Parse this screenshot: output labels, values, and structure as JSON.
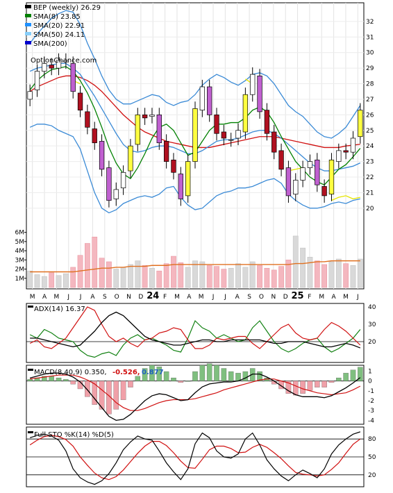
{
  "chart_data": {
    "type": "line",
    "source": "OptionChance.com",
    "months": [
      "M",
      "A",
      "M",
      "J",
      "J",
      "A",
      "S",
      "O",
      "N",
      "D",
      "24",
      "F",
      "M",
      "A",
      "M",
      "J",
      "J",
      "A",
      "S",
      "O",
      "N",
      "D",
      "25",
      "F",
      "M",
      "A",
      "M",
      "J"
    ],
    "price_panel": {
      "legend": [
        {
          "label": "BEP (weekly) 26.29",
          "color": "#000000"
        },
        {
          "label": "SMA(8) 23.85",
          "color": "#008000"
        },
        {
          "label": "SMA(20) 22.91",
          "color": "#1e90ff"
        },
        {
          "label": "SMA(50) 24.11",
          "color": "#87cefa"
        },
        {
          "label": "SMA(200)",
          "color": "#0000cd"
        }
      ],
      "yticks": [
        20,
        21,
        22,
        23,
        24,
        25,
        26,
        27,
        28,
        29,
        30,
        31,
        32
      ],
      "ylim": [
        19.1,
        33.2
      ],
      "volume_ticks": [
        "1M",
        "2M",
        "3M",
        "4M",
        "5M",
        "6M"
      ],
      "close": [
        27.5,
        28.8,
        29.3,
        29.0,
        29.5,
        29.5,
        27.5,
        26.3,
        25.2,
        24.2,
        22.5,
        20.5,
        21.2,
        22.3,
        24.0,
        26.0,
        25.8,
        26.0,
        24.2,
        23.0,
        22.3,
        20.6,
        23.0,
        26.4,
        27.8,
        26.0,
        24.8,
        24.5,
        24.4,
        25.0,
        27.3,
        28.6,
        26.2,
        24.8,
        23.6,
        22.5,
        20.8,
        21.8,
        22.6,
        23.0,
        21.5,
        20.8,
        23.1,
        23.7,
        23.6,
        24.5,
        26.3
      ],
      "open": [
        27.0,
        27.6,
        28.8,
        29.2,
        29.0,
        29.4,
        29.3,
        27.4,
        26.2,
        25.1,
        24.3,
        22.6,
        20.6,
        21.3,
        22.4,
        24.1,
        26.0,
        25.9,
        26.0,
        24.3,
        23.1,
        22.2,
        20.8,
        23.0,
        26.3,
        27.8,
        26.0,
        24.9,
        24.4,
        24.5,
        24.9,
        27.3,
        28.5,
        26.3,
        24.9,
        23.7,
        22.6,
        20.9,
        21.8,
        22.6,
        23.1,
        21.4,
        20.9,
        23.0,
        23.7,
        23.6,
        24.6
      ],
      "volume": [
        1.8,
        1.4,
        1.2,
        1.6,
        1.3,
        1.5,
        2.2,
        3.5,
        4.8,
        5.5,
        3.2,
        2.8,
        2.0,
        2.2,
        2.5,
        2.9,
        2.4,
        2.1,
        1.8,
        2.6,
        3.4,
        2.7,
        2.2,
        2.9,
        2.8,
        2.4,
        2.3,
        2.0,
        2.1,
        2.6,
        2.2,
        2.8,
        2.4,
        2.1,
        1.9,
        2.3,
        3.0,
        5.6,
        4.3,
        3.3,
        2.9,
        2.5,
        2.8,
        3.1,
        2.6,
        2.4,
        3.1
      ],
      "sma8": [
        27.6,
        28.2,
        28.6,
        28.9,
        29.0,
        29.1,
        28.8,
        28.2,
        27.4,
        26.4,
        25.2,
        23.9,
        22.9,
        22.2,
        21.9,
        22.6,
        23.5,
        24.5,
        25.2,
        25.4,
        25.0,
        24.2,
        23.4,
        23.6,
        24.3,
        25.0,
        25.4,
        25.4,
        25.5,
        25.5,
        25.8,
        26.3,
        26.5,
        26.2,
        25.5,
        24.6,
        23.8,
        23.0,
        22.5,
        22.0,
        21.7,
        21.5,
        22.0,
        22.5,
        22.8,
        23.3,
        23.85
      ],
      "sma20": [
        28.8,
        29.0,
        29.1,
        29.2,
        29.3,
        29.3,
        29.0,
        28.6,
        27.9,
        27.2,
        26.4,
        25.6,
        24.8,
        24.1,
        23.7,
        23.6,
        23.7,
        23.9,
        24.0,
        24.0,
        23.9,
        23.7,
        23.5,
        23.5,
        23.7,
        24.0,
        24.3,
        24.4,
        24.4,
        24.5,
        24.7,
        24.9,
        25.0,
        25.0,
        24.8,
        24.5,
        24.1,
        23.7,
        23.3,
        22.9,
        22.6,
        22.4,
        22.4,
        22.5,
        22.6,
        22.7,
        22.91
      ],
      "sma50": [
        27.5,
        27.8,
        28.0,
        28.2,
        28.4,
        28.5,
        28.5,
        28.4,
        28.2,
        27.9,
        27.5,
        27.0,
        26.5,
        26.0,
        25.6,
        25.2,
        24.9,
        24.7,
        24.5,
        24.3,
        24.2,
        24.1,
        24.0,
        23.9,
        23.9,
        23.9,
        24.0,
        24.1,
        24.2,
        24.3,
        24.4,
        24.5,
        24.6,
        24.6,
        24.6,
        24.5,
        24.4,
        24.3,
        24.2,
        24.1,
        24.0,
        23.9,
        23.9,
        23.9,
        24.0,
        24.05,
        24.11
      ],
      "bb_upper": [
        30.6,
        31.2,
        31.7,
        32.2,
        32.5,
        32.7,
        32.6,
        31.8,
        30.6,
        29.6,
        28.5,
        27.6,
        27.0,
        26.7,
        26.7,
        26.9,
        27.1,
        27.3,
        27.2,
        26.8,
        26.6,
        26.8,
        26.9,
        27.3,
        27.9,
        28.3,
        28.6,
        28.4,
        28.1,
        27.9,
        28.2,
        28.6,
        28.7,
        28.5,
        28.0,
        27.3,
        26.6,
        26.2,
        25.9,
        25.4,
        24.9,
        24.6,
        24.5,
        24.8,
        25.2,
        25.9,
        26.6
      ],
      "bb_lower": [
        25.2,
        25.4,
        25.4,
        25.3,
        25.0,
        24.8,
        24.6,
        23.8,
        22.4,
        21.0,
        20.0,
        19.7,
        19.9,
        20.3,
        20.5,
        20.7,
        20.8,
        20.7,
        20.9,
        21.3,
        21.4,
        20.7,
        20.2,
        19.9,
        20.0,
        20.4,
        20.8,
        21.0,
        21.1,
        21.3,
        21.3,
        21.4,
        21.6,
        21.8,
        21.9,
        21.6,
        20.9,
        20.5,
        20.2,
        20.0,
        20.0,
        20.1,
        20.3,
        20.4,
        20.3,
        20.5,
        20.6
      ],
      "psar_yellow": [
        null,
        null,
        null,
        null,
        null,
        null,
        28.2,
        28.0,
        null,
        null,
        null,
        null,
        null,
        null,
        null,
        null,
        null,
        null,
        null,
        null,
        null,
        null,
        null,
        null,
        null,
        null,
        null,
        null,
        null,
        null,
        28.3,
        28.0,
        null,
        null,
        null,
        null,
        22.4,
        22.5,
        22.6,
        null,
        null,
        null,
        20.5,
        20.7,
        20.8,
        20.6,
        20.7
      ],
      "avg_volume": [
        1.7,
        1.7,
        1.7,
        1.7,
        1.7,
        1.7,
        1.7,
        1.8,
        1.9,
        2.0,
        2.1,
        2.1,
        2.2,
        2.2,
        2.3,
        2.3,
        2.3,
        2.4,
        2.4,
        2.4,
        2.5,
        2.5,
        2.5,
        2.5,
        2.5,
        2.5,
        2.5,
        2.5,
        2.5,
        2.5,
        2.5,
        2.5,
        2.5,
        2.5,
        2.5,
        2.5,
        2.5,
        2.6,
        2.6,
        2.7,
        2.8,
        2.8,
        2.9,
        2.9,
        2.9,
        2.9,
        2.9
      ]
    },
    "adx_panel": {
      "label": "ADX(14) 16.37",
      "yticks": [
        20,
        30,
        40
      ],
      "ylim": [
        8,
        42
      ],
      "adx": [
        22,
        22,
        21,
        20,
        19,
        18,
        17,
        18,
        22,
        26,
        31,
        35,
        37,
        35,
        31,
        27,
        23,
        21,
        20,
        19,
        18,
        18,
        19,
        20,
        21,
        21,
        20,
        20,
        21,
        21,
        21,
        21,
        21,
        20,
        19,
        19,
        20,
        20,
        20,
        19,
        18,
        17,
        17,
        18,
        19,
        18,
        16.37
      ],
      "plus_di": [
        24,
        22,
        27,
        25,
        22,
        21,
        20,
        15,
        12,
        11,
        13,
        14,
        12,
        18,
        22,
        24,
        21,
        22,
        20,
        18,
        15,
        14,
        22,
        32,
        28,
        26,
        22,
        24,
        22,
        20,
        21,
        28,
        32,
        26,
        20,
        16,
        14,
        16,
        19,
        21,
        22,
        17,
        14,
        16,
        19,
        22,
        27
      ],
      "minus_di": [
        19,
        21,
        17,
        16,
        19,
        22,
        28,
        34,
        40,
        38,
        30,
        23,
        20,
        22,
        19,
        17,
        21,
        22,
        25,
        26,
        28,
        27,
        21,
        16,
        16,
        18,
        22,
        21,
        22,
        23,
        23,
        19,
        16,
        20,
        24,
        28,
        30,
        25,
        22,
        21,
        22,
        27,
        31,
        29,
        26,
        22,
        18
      ]
    },
    "macd_panel": {
      "label": "MACD(8,40,9) 0.350,",
      "signal_label": "-0.526,",
      "hist_label": "0.877",
      "yticks": [
        -4,
        -3,
        -2,
        -1,
        0,
        1
      ],
      "ylim": [
        -4.4,
        1.6
      ],
      "macd": [
        0.3,
        0.5,
        0.7,
        0.8,
        0.8,
        0.7,
        0.4,
        -0.1,
        -0.9,
        -1.8,
        -2.7,
        -3.6,
        -4.0,
        -3.9,
        -3.4,
        -2.7,
        -2.0,
        -1.5,
        -1.3,
        -1.4,
        -1.7,
        -2.0,
        -1.9,
        -1.2,
        -0.6,
        -0.3,
        -0.2,
        -0.1,
        -0.1,
        0.0,
        0.3,
        0.7,
        0.7,
        0.4,
        0.0,
        -0.5,
        -1.0,
        -1.4,
        -1.6,
        -1.6,
        -1.6,
        -1.7,
        -1.5,
        -1.1,
        -0.7,
        -0.2,
        0.35
      ],
      "signal": [
        0.2,
        0.3,
        0.4,
        0.5,
        0.6,
        0.6,
        0.6,
        0.4,
        0.1,
        -0.3,
        -0.9,
        -1.5,
        -2.2,
        -2.7,
        -3.0,
        -3.0,
        -2.8,
        -2.5,
        -2.2,
        -2.0,
        -1.9,
        -1.9,
        -1.9,
        -1.8,
        -1.6,
        -1.4,
        -1.2,
        -0.9,
        -0.7,
        -0.5,
        -0.3,
        -0.1,
        0.1,
        0.2,
        0.2,
        0.0,
        -0.2,
        -0.5,
        -0.8,
        -1.0,
        -1.2,
        -1.3,
        -1.4,
        -1.3,
        -1.2,
        -0.9,
        -0.526
      ]
    },
    "sto_panel": {
      "label": "Full STO %K(14) %D(5)",
      "yticks": [
        20,
        50,
        80
      ],
      "ylim": [
        0,
        100
      ],
      "k": [
        82,
        86,
        88,
        85,
        78,
        60,
        30,
        15,
        8,
        4,
        10,
        22,
        40,
        62,
        75,
        85,
        80,
        78,
        60,
        40,
        25,
        12,
        30,
        72,
        90,
        82,
        60,
        50,
        48,
        55,
        80,
        90,
        70,
        45,
        30,
        18,
        10,
        20,
        28,
        22,
        15,
        30,
        55,
        70,
        80,
        88,
        92
      ],
      "d": [
        70,
        78,
        84,
        86,
        84,
        79,
        68,
        50,
        36,
        23,
        15,
        12,
        17,
        28,
        42,
        56,
        68,
        76,
        76,
        69,
        57,
        43,
        32,
        31,
        46,
        62,
        68,
        68,
        64,
        57,
        58,
        66,
        71,
        66,
        57,
        47,
        35,
        24,
        21,
        20,
        18,
        20,
        29,
        40,
        56,
        71,
        80
      ]
    }
  }
}
